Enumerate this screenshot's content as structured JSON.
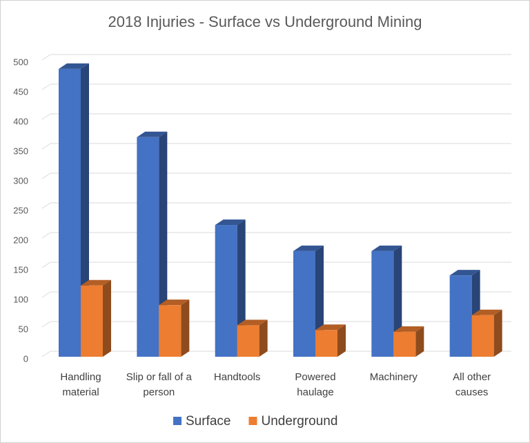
{
  "chart_data": {
    "type": "bar3d",
    "title": "2018 Injuries - Surface vs Underground Mining",
    "categories": [
      "Handling material",
      "Slip or fall of a person",
      "Handtools",
      "Powered haulage",
      "Machinery",
      "All other causes"
    ],
    "series": [
      {
        "name": "Surface",
        "color": "#4472c4",
        "values": [
          485,
          370,
          222,
          178,
          178,
          137
        ]
      },
      {
        "name": "Underground",
        "color": "#ed7d31",
        "values": [
          120,
          87,
          53,
          45,
          42,
          70
        ]
      }
    ],
    "ylim": [
      0,
      500
    ],
    "yticks": [
      0,
      50,
      100,
      150,
      200,
      250,
      300,
      350,
      400,
      450,
      500
    ],
    "grid": true,
    "legend": "bottom"
  }
}
